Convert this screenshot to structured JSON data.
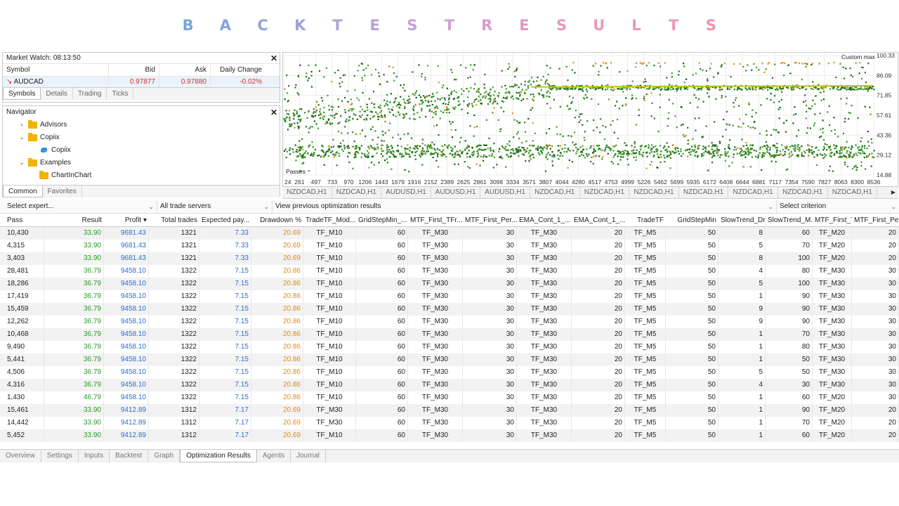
{
  "banner": {
    "letters": [
      "B",
      "A",
      "C",
      "K",
      "T",
      "E",
      "S",
      "T",
      "R",
      "E",
      "S",
      "U",
      "L",
      "T",
      "S"
    ],
    "colors": [
      "#7ba7d6",
      "#82a6d6",
      "#8fa5d8",
      "#a0a2d8",
      "#ada2d8",
      "#bba0d6",
      "#c69fd4",
      "#d19ecf",
      "#d89ccb",
      "#de9ac6",
      "#e399c0",
      "#e798ba",
      "#eb97b3",
      "#ee96ac",
      "#f094a6"
    ]
  },
  "market_watch": {
    "title": "Market Watch: 08:13:50",
    "columns": [
      "Symbol",
      "Bid",
      "Ask",
      "Daily Change"
    ],
    "row": {
      "symbol": "AUDCAD",
      "bid": "0.97877",
      "ask": "0.97880",
      "change": "-0.02%"
    },
    "tabs": [
      "Symbols",
      "Details",
      "Trading",
      "Ticks"
    ]
  },
  "navigator": {
    "title": "Navigator",
    "items": [
      {
        "label": "Advisors",
        "type": "folder"
      },
      {
        "label": "Copiix",
        "type": "folder"
      },
      {
        "label": "Copiix",
        "type": "ea"
      },
      {
        "label": "Examples",
        "type": "folder"
      },
      {
        "label": "ChartInChart",
        "type": "folder"
      }
    ],
    "tabs": [
      "Common",
      "Favorites"
    ]
  },
  "chart": {
    "label_passes": "Passes",
    "label_custom": "Custom max",
    "y_ticks": [
      "100.33",
      "86.09",
      "71.85",
      "57.61",
      "43.36",
      "29.12",
      "14.88"
    ],
    "x_ticks": [
      "24",
      "261",
      "497",
      "733",
      "970",
      "1206",
      "1443",
      "1679",
      "1916",
      "2152",
      "2389",
      "2625",
      "2861",
      "3098",
      "3334",
      "3571",
      "3807",
      "4044",
      "4280",
      "4517",
      "4753",
      "4999",
      "5226",
      "5462",
      "5699",
      "5935",
      "6172",
      "6408",
      "6644",
      "6881",
      "7117",
      "7354",
      "7590",
      "7827",
      "8063",
      "8300",
      "8536"
    ]
  },
  "symbol_tabs": [
    "NZDCAD,H1",
    "NZDCAD,H1",
    "AUDUSD,H1",
    "AUDUSD,H1",
    "AUDUSD,H1",
    "NZDCAD,H1",
    "NZDCAD,H1",
    "NZDCAD,H1",
    "NZDCAD,H1",
    "NZDCAD,H1",
    "NZDCAD,H1",
    "NZDCAD,H1"
  ],
  "filter": {
    "expert": "Select expert...",
    "servers": "All trade servers",
    "previous": "View previous optimization results",
    "criterion": "Select criterion"
  },
  "table": {
    "headers": [
      "Pass",
      "Result",
      "Profit ▾",
      "Total trades",
      "Expected pay...",
      "Drawdown %",
      "TradeTF_Mod...",
      "GridStepMin_...",
      "MTF_First_TFr...",
      "MTF_First_Per...",
      "EMA_Cont_1_...",
      "EMA_Cont_1_...",
      "TradeTF",
      "GridStepMin",
      "SlowTrend_Dr...",
      "SlowTrend_M...",
      "MTF_First_TF",
      "MTF_First_Peri..."
    ],
    "rows": [
      [
        "10,430",
        "33.90",
        "9681.43",
        "1321",
        "7.33",
        "20.69",
        "TF_M10",
        "60",
        "TF_M30",
        "30",
        "TF_M30",
        "20",
        "TF_M5",
        "50",
        "8",
        "60",
        "TF_M20",
        "20"
      ],
      [
        "4,315",
        "33.90",
        "9681.43",
        "1321",
        "7.33",
        "20.69",
        "TF_M10",
        "60",
        "TF_M30",
        "30",
        "TF_M30",
        "20",
        "TF_M5",
        "50",
        "5",
        "70",
        "TF_M20",
        "20"
      ],
      [
        "3,403",
        "33.90",
        "9681.43",
        "1321",
        "7.33",
        "20.69",
        "TF_M10",
        "60",
        "TF_M30",
        "30",
        "TF_M30",
        "20",
        "TF_M5",
        "50",
        "8",
        "100",
        "TF_M20",
        "20"
      ],
      [
        "28,481",
        "36.79",
        "9458.10",
        "1322",
        "7.15",
        "20.86",
        "TF_M10",
        "60",
        "TF_M30",
        "30",
        "TF_M30",
        "20",
        "TF_M5",
        "50",
        "4",
        "80",
        "TF_M30",
        "30"
      ],
      [
        "18,286",
        "36.79",
        "9458.10",
        "1322",
        "7.15",
        "20.86",
        "TF_M10",
        "60",
        "TF_M30",
        "30",
        "TF_M30",
        "20",
        "TF_M5",
        "50",
        "5",
        "100",
        "TF_M30",
        "30"
      ],
      [
        "17,419",
        "36.79",
        "9458.10",
        "1322",
        "7.15",
        "20.86",
        "TF_M10",
        "60",
        "TF_M30",
        "30",
        "TF_M30",
        "20",
        "TF_M5",
        "50",
        "1",
        "90",
        "TF_M30",
        "30"
      ],
      [
        "15,459",
        "36.79",
        "9458.10",
        "1322",
        "7.15",
        "20.86",
        "TF_M10",
        "60",
        "TF_M30",
        "30",
        "TF_M30",
        "20",
        "TF_M5",
        "50",
        "9",
        "90",
        "TF_M30",
        "30"
      ],
      [
        "12,262",
        "36.79",
        "9458.10",
        "1322",
        "7.15",
        "20.86",
        "TF_M10",
        "60",
        "TF_M30",
        "30",
        "TF_M30",
        "20",
        "TF_M5",
        "50",
        "9",
        "90",
        "TF_M30",
        "30"
      ],
      [
        "10,468",
        "36.79",
        "9458.10",
        "1322",
        "7.15",
        "20.86",
        "TF_M10",
        "60",
        "TF_M30",
        "30",
        "TF_M30",
        "20",
        "TF_M5",
        "50",
        "1",
        "70",
        "TF_M30",
        "30"
      ],
      [
        "9,490",
        "36.79",
        "9458.10",
        "1322",
        "7.15",
        "20.86",
        "TF_M10",
        "60",
        "TF_M30",
        "30",
        "TF_M30",
        "20",
        "TF_M5",
        "50",
        "1",
        "80",
        "TF_M30",
        "30"
      ],
      [
        "5,441",
        "36.79",
        "9458.10",
        "1322",
        "7.15",
        "20.86",
        "TF_M10",
        "60",
        "TF_M30",
        "30",
        "TF_M30",
        "20",
        "TF_M5",
        "50",
        "1",
        "50",
        "TF_M30",
        "30"
      ],
      [
        "4,506",
        "36.79",
        "9458.10",
        "1322",
        "7.15",
        "20.86",
        "TF_M10",
        "60",
        "TF_M30",
        "30",
        "TF_M30",
        "20",
        "TF_M5",
        "50",
        "5",
        "50",
        "TF_M30",
        "30"
      ],
      [
        "4,316",
        "36.79",
        "9458.10",
        "1322",
        "7.15",
        "20.86",
        "TF_M10",
        "60",
        "TF_M30",
        "30",
        "TF_M30",
        "20",
        "TF_M5",
        "50",
        "4",
        "30",
        "TF_M30",
        "30"
      ],
      [
        "1,430",
        "46.79",
        "9458.10",
        "1322",
        "7.15",
        "20.86",
        "TF_M10",
        "60",
        "TF_M30",
        "30",
        "TF_M30",
        "20",
        "TF_M5",
        "50",
        "1",
        "60",
        "TF_M20",
        "30"
      ],
      [
        "15,461",
        "33.90",
        "9412.89",
        "1312",
        "7.17",
        "20.69",
        "TF_M30",
        "60",
        "TF_M30",
        "30",
        "TF_M30",
        "20",
        "TF_M5",
        "50",
        "1",
        "90",
        "TF_M20",
        "20"
      ],
      [
        "14,442",
        "33.90",
        "9412.89",
        "1312",
        "7.17",
        "20.69",
        "TF_M30",
        "60",
        "TF_M30",
        "30",
        "TF_M30",
        "20",
        "TF_M5",
        "50",
        "1",
        "70",
        "TF_M20",
        "20"
      ],
      [
        "5,452",
        "33.90",
        "9412.89",
        "1312",
        "7.17",
        "20.69",
        "TF_M10",
        "60",
        "TF_M30",
        "30",
        "TF_M30",
        "20",
        "TF_M5",
        "50",
        "1",
        "60",
        "TF_M20",
        "20"
      ]
    ]
  },
  "bottom_tabs": [
    "Overview",
    "Settings",
    "Inputs",
    "Backtest",
    "Graph",
    "Optimization Results",
    "Agents",
    "Journal"
  ],
  "colors": {
    "green": "#2a9a2a",
    "blue": "#2a6ed4",
    "orange": "#e38a10",
    "down": "#d42b2b"
  }
}
